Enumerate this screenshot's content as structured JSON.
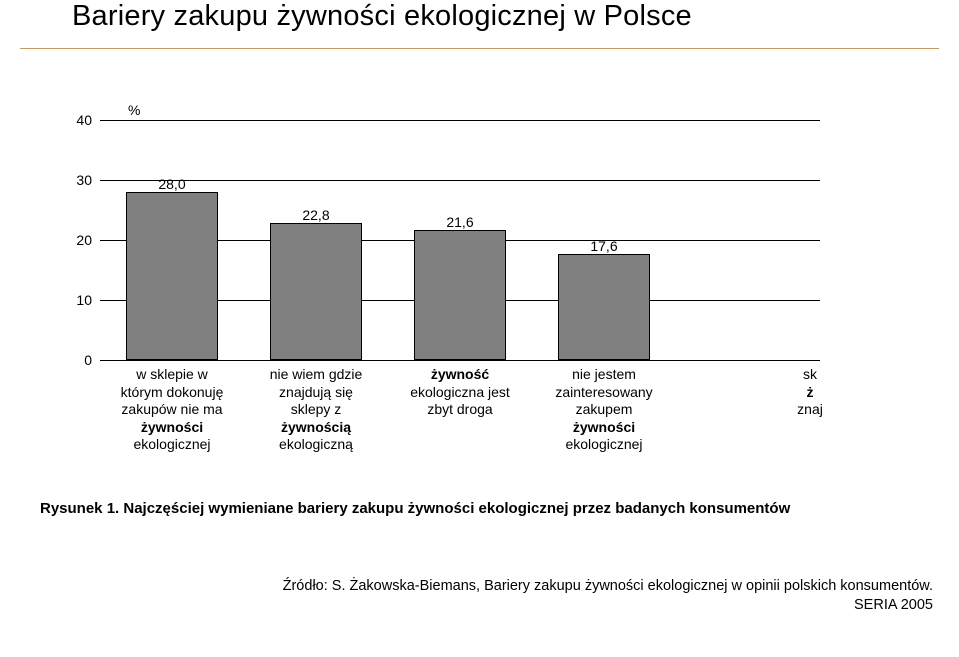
{
  "title": "Bariery zakupu żywności ekologicznej w Polsce",
  "chart": {
    "type": "bar",
    "y_unit": "%",
    "ylim": [
      0,
      40
    ],
    "yticks": [
      0,
      10,
      20,
      30,
      40
    ],
    "background_color": "#ffffff",
    "grid_color": "#000000",
    "bar_fill": "#808080",
    "bar_border": "#000000",
    "label_fontsize": 14,
    "value_fontsize": 14,
    "bar_rel_width": 0.64,
    "categories": [
      {
        "value": 28.0,
        "label_lines": [
          "w sklepie w",
          "którym dokonuję",
          "zakupów nie ma",
          "żywności",
          "ekologicznej"
        ],
        "bold_line_idx": [
          3
        ]
      },
      {
        "value": 22.8,
        "label_lines": [
          "nie wiem gdzie",
          "znajdują się",
          "sklepy z",
          "żywnością",
          "ekologiczną"
        ],
        "bold_line_idx": [
          3
        ]
      },
      {
        "value": 21.6,
        "label_lines": [
          "żywność",
          "ekologiczna jest",
          "zbyt droga"
        ],
        "bold_line_idx": [
          0
        ]
      },
      {
        "value": 17.6,
        "label_lines": [
          "nie jestem",
          "zainteresowany",
          "zakupem",
          "żywności",
          "ekologicznej"
        ],
        "bold_line_idx": [
          3
        ]
      },
      {
        "value": null,
        "label_lines": [
          "sk",
          "ż",
          "znaj"
        ],
        "bold_line_idx": [
          1
        ],
        "truncated": true
      }
    ]
  },
  "caption": {
    "prefix": "Rysunek 1. ",
    "text": "Najczęściej wymieniane bariery zakupu żywności ekologicznej przez badanych konsumentów"
  },
  "source": {
    "line1": "Źródło: S. Żakowska-Biemans, Bariery zakupu żywności ekologicznej w opinii polskich konsumentów.",
    "line2": "SERIA 2005"
  }
}
